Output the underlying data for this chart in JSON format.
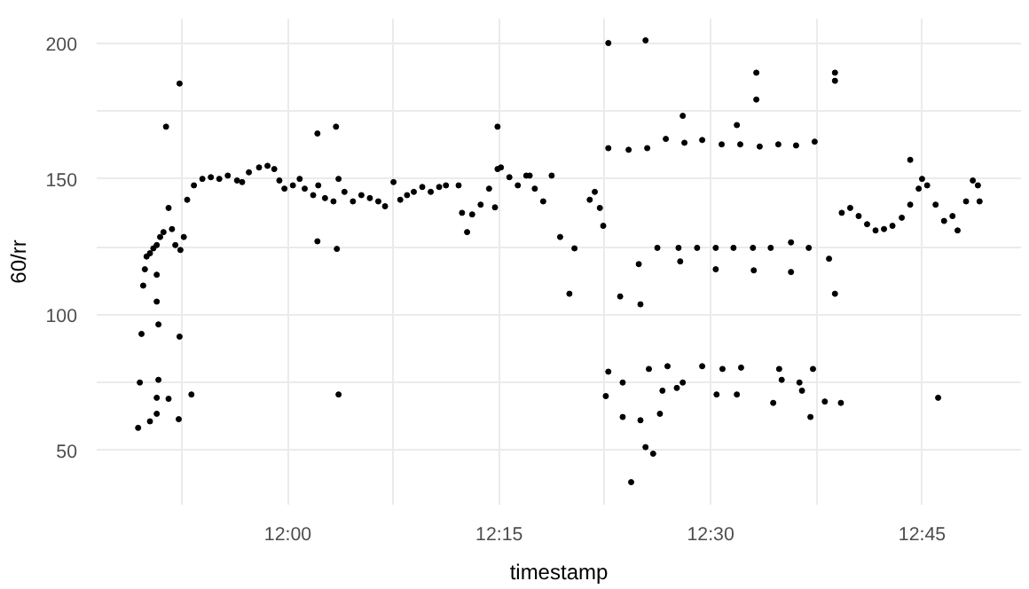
{
  "chart_data": {
    "type": "scatter",
    "xlabel": "timestamp",
    "ylabel": "60/rr",
    "xlim": [
      11.774,
      12.867
    ],
    "ylim": [
      30,
      209
    ],
    "xticks": [
      {
        "value": 11.875,
        "label": null
      },
      {
        "value": 12,
        "label": "12:00"
      },
      {
        "value": 12.125,
        "label": null
      },
      {
        "value": 12.25,
        "label": "12:15"
      },
      {
        "value": 12.375,
        "label": null
      },
      {
        "value": 12.5,
        "label": "12:30"
      },
      {
        "value": 12.625,
        "label": null
      },
      {
        "value": 12.75,
        "label": "12:45"
      }
    ],
    "yticks": [
      50,
      {
        "value": 75,
        "label": null
      },
      100,
      {
        "value": 125,
        "label": null
      },
      150,
      {
        "value": 175,
        "label": null
      },
      200
    ],
    "grid": true,
    "marker": "circle",
    "series": [
      {
        "color": "#000000",
        "x": [
          11.823,
          11.825,
          11.827,
          11.829,
          11.831,
          11.833,
          11.837,
          11.841,
          11.845,
          11.849,
          11.853,
          11.859,
          11.863,
          11.867,
          11.873,
          11.877,
          11.881,
          11.889,
          11.899,
          11.909,
          11.919,
          11.929,
          11.94,
          11.946,
          11.954,
          11.966,
          11.976,
          11.984,
          11.99,
          11.996,
          12.006,
          12.014,
          12.02,
          12.03,
          12.036,
          12.044,
          12.054,
          12.06,
          12.067,
          12.077,
          12.087,
          12.097,
          12.107,
          12.115,
          12.125,
          12.133,
          12.141,
          12.149,
          12.159,
          12.169,
          12.179,
          12.187,
          12.202,
          12.206,
          12.212,
          12.218,
          12.228,
          12.238,
          12.248,
          12.252,
          12.262,
          12.272,
          12.282,
          12.286,
          12.292,
          12.302,
          12.312,
          12.322,
          12.333,
          12.339,
          12.357,
          12.363,
          12.369,
          12.373,
          12.379,
          12.393,
          12.403,
          12.415,
          12.425,
          12.437,
          12.447,
          12.462,
          12.469,
          12.484,
          12.49,
          12.506,
          12.513,
          12.527,
          12.535,
          12.55,
          12.558,
          12.571,
          12.58,
          12.595,
          12.601,
          12.616,
          12.623,
          12.64,
          12.655,
          12.665,
          12.675,
          12.685,
          12.695,
          12.705,
          12.715,
          12.726,
          12.736,
          12.746,
          12.75,
          12.756,
          12.766,
          12.776,
          12.786,
          12.792,
          12.802,
          12.81,
          12.816,
          12.818,
          11.872,
          11.856,
          12.035,
          12.057,
          12.035,
          12.058,
          12.06,
          11.886,
          11.871,
          11.872,
          11.859,
          11.845,
          11.837,
          11.847,
          11.845,
          11.845,
          11.847,
          11.845,
          12.245,
          12.248,
          12.379,
          12.423,
          12.467,
          12.554,
          12.554,
          12.647,
          12.647,
          12.531,
          12.736,
          12.647,
          12.417,
          12.506,
          12.551,
          12.595,
          12.464,
          12.376,
          12.379,
          12.396,
          12.427,
          12.449,
          12.467,
          12.49,
          12.514,
          12.536,
          12.531,
          12.507,
          12.581,
          12.584,
          12.605,
          12.608,
          12.621,
          12.618,
          12.635,
          12.654,
          12.769,
          12.396,
          12.417,
          12.423,
          12.432,
          12.406,
          12.44,
          12.574,
          12.443,
          12.46
        ],
        "values": [
          58.3,
          75,
          92.9,
          110.7,
          116.7,
          121.4,
          122.6,
          124.4,
          125.6,
          128.6,
          130.4,
          139.3,
          131.5,
          125.6,
          123.8,
          128.6,
          142.3,
          147.6,
          150,
          150.6,
          150,
          151.2,
          149.4,
          148.8,
          152.4,
          154.2,
          154.8,
          153.6,
          149.4,
          146.4,
          147.6,
          150,
          146.4,
          144,
          147.6,
          142.9,
          141.7,
          150,
          145.2,
          141.7,
          144,
          142.9,
          141.7,
          139.9,
          148.8,
          142.3,
          144,
          145.2,
          147,
          145.2,
          147,
          147.6,
          147.6,
          137.5,
          130.4,
          136.9,
          140.5,
          146.4,
          153.6,
          154.2,
          150.6,
          147.6,
          151.2,
          151.2,
          146.4,
          141.7,
          151.2,
          128.6,
          107.7,
          124.4,
          142.3,
          145.2,
          139.3,
          132.7,
          161.3,
          106.7,
          160.7,
          118.6,
          161.3,
          124.6,
          164.7,
          124.6,
          163.3,
          124.6,
          164.3,
          124.6,
          162.7,
          124.6,
          162.7,
          124.6,
          161.9,
          124.6,
          162.7,
          126.6,
          162.3,
          124.6,
          163.7,
          120.6,
          137.5,
          139.3,
          136.3,
          133.3,
          131,
          131.5,
          132.7,
          135.7,
          140.5,
          146.4,
          150,
          147.6,
          140.5,
          134.5,
          136.3,
          131,
          141.7,
          149.4,
          147.6,
          141.7,
          185.1,
          169.2,
          166.7,
          169.2,
          127,
          124.2,
          70.6,
          70.6,
          61.5,
          91.9,
          69,
          69.4,
          60.7,
          76,
          104.8,
          114.7,
          96.4,
          63.5,
          139.5,
          169.2,
          200,
          201,
          173.2,
          189.1,
          179.2,
          189.1,
          186.1,
          169.8,
          157,
          107.7,
          103.8,
          116.7,
          116.3,
          115.7,
          119.6,
          70,
          79,
          75,
          80,
          81,
          75,
          81,
          80,
          80.5,
          70.6,
          70.6,
          80,
          76,
          75,
          72,
          80,
          62.3,
          68,
          67.5,
          69.4,
          62.3,
          61.1,
          51.2,
          48.8,
          38.3,
          63.5,
          67.5,
          72,
          73
        ]
      }
    ]
  }
}
